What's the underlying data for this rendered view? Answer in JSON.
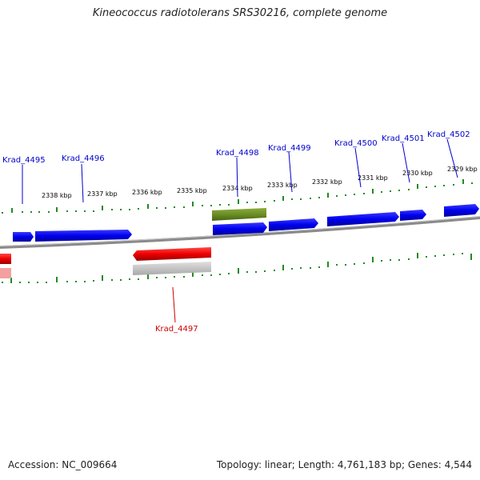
{
  "title": "Kineococcus radiotolerans SRS30216, complete genome",
  "footer": {
    "accession": "Accession: NC_009664",
    "topology": "Topology: linear; Length: 4,761,183 bp; Genes: 4,544"
  },
  "colors": {
    "forward_gene": "#0000ee",
    "reverse_gene": "#ee0000",
    "highlight_gene": "#6b8e23",
    "reverse_shadow": "#b8b8b8",
    "backbone": "#808080",
    "ticks": "#228b22",
    "forward_label": "#0000cc",
    "reverse_label": "#cc0000"
  },
  "ruler_ticks": [
    "2338 kbp",
    "2337 kbp",
    "2336 kbp",
    "2335 kbp",
    "2334 kbp",
    "2333 kbp",
    "2332 kbp",
    "2331 kbp",
    "2330 kbp",
    "2329 kbp"
  ],
  "forward_labels": [
    "Krad_4495",
    "Krad_4496",
    "Krad_4498",
    "Krad_4499",
    "Krad_4500",
    "Krad_4501",
    "Krad_4502"
  ],
  "reverse_labels": [
    "Krad_4497"
  ]
}
